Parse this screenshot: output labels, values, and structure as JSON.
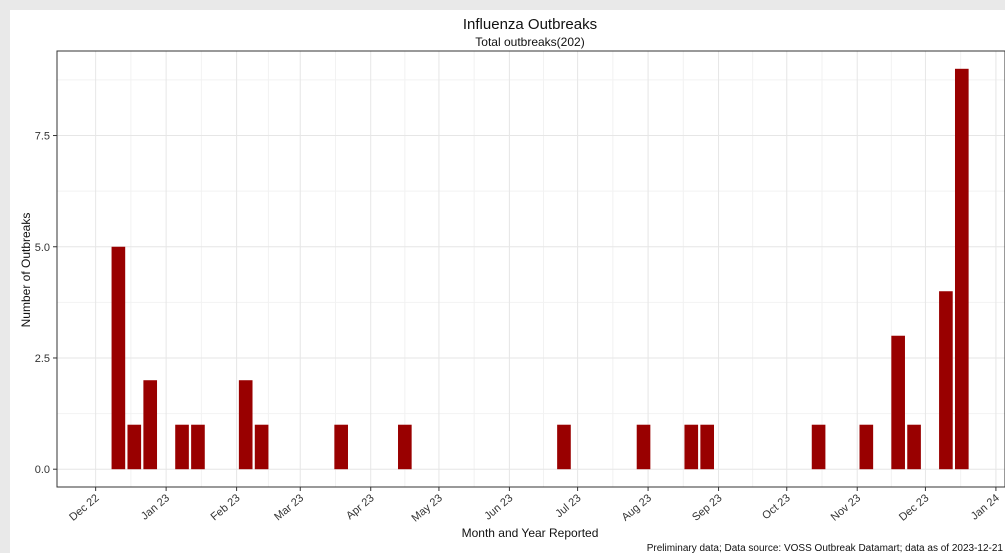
{
  "chart_data": {
    "type": "bar",
    "title": "Influenza Outbreaks",
    "subtitle": "Total outbreaks(202)",
    "xlabel": "Month and Year Reported",
    "ylabel": "Number of Outbreaks",
    "caption": "Preliminary data; Data source: VOSS Outbreak Datamart; data as of 2023-12-21",
    "x_tick_labels": [
      "Dec 22",
      "Jan 23",
      "Feb 23",
      "Mar 23",
      "Apr 23",
      "May 23",
      "Jun 23",
      "Jul 23",
      "Aug 23",
      "Sep 23",
      "Oct 23",
      "Nov 23",
      "Dec 23",
      "Jan 24"
    ],
    "x_tick_dates": [
      "2022-12-01",
      "2023-01-01",
      "2023-02-01",
      "2023-03-01",
      "2023-04-01",
      "2023-05-01",
      "2023-06-01",
      "2023-07-01",
      "2023-08-01",
      "2023-09-01",
      "2023-10-01",
      "2023-11-01",
      "2023-12-01",
      "2024-01-01"
    ],
    "y_ticks": [
      0,
      2.5,
      5,
      7.5
    ],
    "y_tick_labels": [
      "0.0",
      "2.5",
      "5.0",
      "7.5"
    ],
    "ylim": [
      -0.4,
      9.4
    ],
    "xlim": [
      "2022-11-14",
      "2024-01-05"
    ],
    "bar_width_days": 6,
    "bar_color": "#990000",
    "grid": true,
    "x": [
      "2022-12-11",
      "2022-12-18",
      "2022-12-25",
      "2023-01-08",
      "2023-01-15",
      "2023-02-05",
      "2023-02-12",
      "2023-03-19",
      "2023-04-16",
      "2023-06-25",
      "2023-07-30",
      "2023-08-20",
      "2023-08-27",
      "2023-10-15",
      "2023-11-05",
      "2023-11-19",
      "2023-11-26",
      "2023-12-10",
      "2023-12-17"
    ],
    "values": [
      5,
      1,
      2,
      1,
      1,
      2,
      1,
      1,
      1,
      1,
      1,
      1,
      1,
      1,
      1,
      3,
      1,
      4,
      9
    ]
  }
}
